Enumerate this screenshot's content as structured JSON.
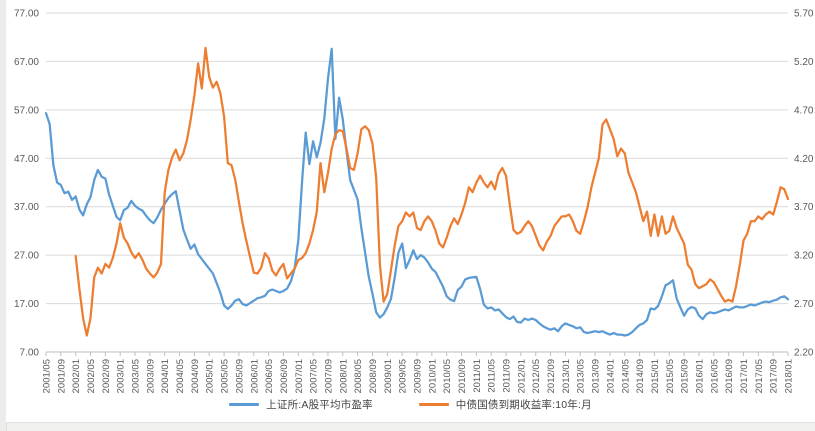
{
  "chart_data": {
    "type": "line",
    "grid": true,
    "legend_position": "bottom",
    "colors": {
      "series_pe": "#5B9BD5",
      "series_yield": "#ED7D31",
      "gridline": "#D9D9D9",
      "axis_line": "#BFBFBF",
      "tick_text": "#595959",
      "background": "#FFFFFF"
    },
    "left_axis": {
      "labels": [
        "77.00",
        "67.00",
        "57.00",
        "47.00",
        "37.00",
        "27.00",
        "17.00",
        "7.00"
      ],
      "values": [
        77,
        67,
        57,
        47,
        37,
        27,
        17,
        7
      ],
      "min": 7,
      "max": 77
    },
    "right_axis": {
      "labels": [
        "5.70",
        "5.20",
        "4.70",
        "4.20",
        "3.70",
        "3.20",
        "2.70",
        "2.20"
      ],
      "values": [
        5.7,
        5.2,
        4.7,
        4.2,
        3.7,
        3.2,
        2.7,
        2.2
      ],
      "min": 2.2,
      "max": 5.7
    },
    "x_tick_every": 4,
    "x_tick_labels": [
      "2001/05",
      "2001/09",
      "2002/01",
      "2002/05",
      "2002/09",
      "2003/01",
      "2003/05",
      "2003/09",
      "2004/01",
      "2004/05",
      "2004/09",
      "2005/01",
      "2005/05",
      "2005/09",
      "2006/01",
      "2006/05",
      "2006/09",
      "2007/01",
      "2007/05",
      "2007/09",
      "2008/01",
      "2008/05",
      "2008/09",
      "2009/01",
      "2009/05",
      "2009/09",
      "2010/01",
      "2010/05",
      "2010/09",
      "2011/01",
      "2011/05",
      "2011/09",
      "2012/01",
      "2012/05",
      "2012/09",
      "2013/01",
      "2013/05",
      "2013/09",
      "2014/01",
      "2014/05",
      "2014/09",
      "2015/01",
      "2015/05",
      "2015/09",
      "2016/01",
      "2016/05",
      "2016/09",
      "2017/01",
      "2017/05",
      "2017/09",
      "2018/01"
    ],
    "x": [
      "2001/05",
      "2001/06",
      "2001/07",
      "2001/08",
      "2001/09",
      "2001/10",
      "2001/11",
      "2001/12",
      "2002/01",
      "2002/02",
      "2002/03",
      "2002/04",
      "2002/05",
      "2002/06",
      "2002/07",
      "2002/08",
      "2002/09",
      "2002/10",
      "2002/11",
      "2002/12",
      "2003/01",
      "2003/02",
      "2003/03",
      "2003/04",
      "2003/05",
      "2003/06",
      "2003/07",
      "2003/08",
      "2003/09",
      "2003/10",
      "2003/11",
      "2003/12",
      "2004/01",
      "2004/02",
      "2004/03",
      "2004/04",
      "2004/05",
      "2004/06",
      "2004/07",
      "2004/08",
      "2004/09",
      "2004/10",
      "2004/11",
      "2004/12",
      "2005/01",
      "2005/02",
      "2005/03",
      "2005/04",
      "2005/05",
      "2005/06",
      "2005/07",
      "2005/08",
      "2005/09",
      "2005/10",
      "2005/11",
      "2005/12",
      "2006/01",
      "2006/02",
      "2006/03",
      "2006/04",
      "2006/05",
      "2006/06",
      "2006/07",
      "2006/08",
      "2006/09",
      "2006/10",
      "2006/11",
      "2006/12",
      "2007/01",
      "2007/02",
      "2007/03",
      "2007/04",
      "2007/05",
      "2007/06",
      "2007/07",
      "2007/08",
      "2007/09",
      "2007/10",
      "2007/11",
      "2007/12",
      "2008/01",
      "2008/02",
      "2008/03",
      "2008/04",
      "2008/05",
      "2008/06",
      "2008/07",
      "2008/08",
      "2008/09",
      "2008/10",
      "2008/11",
      "2008/12",
      "2009/01",
      "2009/02",
      "2009/03",
      "2009/04",
      "2009/05",
      "2009/06",
      "2009/07",
      "2009/08",
      "2009/09",
      "2009/10",
      "2009/11",
      "2009/12",
      "2010/01",
      "2010/02",
      "2010/03",
      "2010/04",
      "2010/05",
      "2010/06",
      "2010/07",
      "2010/08",
      "2010/09",
      "2010/10",
      "2010/11",
      "2010/12",
      "2011/01",
      "2011/02",
      "2011/03",
      "2011/04",
      "2011/05",
      "2011/06",
      "2011/07",
      "2011/08",
      "2011/09",
      "2011/10",
      "2011/11",
      "2011/12",
      "2012/01",
      "2012/02",
      "2012/03",
      "2012/04",
      "2012/05",
      "2012/06",
      "2012/07",
      "2012/08",
      "2012/09",
      "2012/10",
      "2012/11",
      "2012/12",
      "2013/01",
      "2013/02",
      "2013/03",
      "2013/04",
      "2013/05",
      "2013/06",
      "2013/07",
      "2013/08",
      "2013/09",
      "2013/10",
      "2013/11",
      "2013/12",
      "2014/01",
      "2014/02",
      "2014/03",
      "2014/04",
      "2014/05",
      "2014/06",
      "2014/07",
      "2014/08",
      "2014/09",
      "2014/10",
      "2014/11",
      "2014/12",
      "2015/01",
      "2015/02",
      "2015/03",
      "2015/04",
      "2015/05",
      "2015/06",
      "2015/07",
      "2015/08",
      "2015/09",
      "2015/10",
      "2015/11",
      "2015/12",
      "2016/01",
      "2016/02",
      "2016/03",
      "2016/04",
      "2016/05",
      "2016/06",
      "2016/07",
      "2016/08",
      "2016/09",
      "2016/10",
      "2016/11",
      "2016/12",
      "2017/01",
      "2017/02",
      "2017/03",
      "2017/04",
      "2017/05",
      "2017/06",
      "2017/07",
      "2017/08",
      "2017/09",
      "2017/10",
      "2017/11",
      "2017/12",
      "2018/01"
    ],
    "series": [
      {
        "name": "上证所:A股平均市盈率",
        "axis": "left",
        "color": "#5B9BD5",
        "values": [
          56.3,
          54.0,
          45.5,
          42.0,
          41.5,
          39.8,
          40.1,
          38.4,
          39.1,
          36.4,
          35.2,
          37.5,
          39.0,
          42.5,
          44.6,
          43.2,
          42.8,
          39.5,
          37.2,
          34.9,
          34.2,
          36.3,
          36.8,
          38.2,
          37.2,
          36.6,
          36.2,
          35.1,
          34.2,
          33.6,
          34.8,
          36.4,
          37.6,
          38.8,
          39.6,
          40.2,
          36.2,
          32.3,
          30.2,
          28.3,
          29.2,
          27.2,
          26.2,
          25.2,
          24.2,
          23.2,
          21.2,
          19.2,
          16.6,
          15.9,
          16.6,
          17.6,
          17.9,
          16.9,
          16.6,
          17.1,
          17.6,
          18.1,
          18.3,
          18.6,
          19.6,
          19.9,
          19.6,
          19.3,
          19.6,
          20.1,
          21.6,
          24.2,
          30.0,
          42.0,
          52.3,
          45.8,
          50.5,
          47.2,
          50.2,
          55.2,
          63.5,
          69.6,
          51.0,
          59.5,
          55.0,
          48.5,
          42.5,
          40.5,
          38.5,
          32.5,
          27.5,
          22.5,
          19.0,
          15.2,
          14.1,
          14.8,
          16.2,
          18.0,
          22.4,
          27.5,
          29.4,
          24.3,
          26.0,
          28.0,
          26.2,
          27.0,
          26.5,
          25.5,
          24.2,
          23.5,
          22.0,
          20.5,
          18.5,
          17.8,
          17.5,
          19.8,
          20.5,
          22.0,
          22.3,
          22.4,
          22.5,
          20.0,
          16.8,
          16.0,
          16.2,
          15.6,
          15.8,
          15.0,
          14.2,
          13.8,
          14.3,
          13.2,
          13.1,
          13.9,
          13.6,
          13.9,
          13.6,
          12.9,
          12.3,
          11.9,
          11.6,
          11.9,
          11.3,
          12.3,
          12.9,
          12.6,
          12.3,
          11.9,
          12.1,
          11.1,
          10.9,
          11.1,
          11.3,
          11.1,
          11.3,
          10.9,
          10.6,
          10.9,
          10.6,
          10.6,
          10.4,
          10.6,
          11.1,
          11.9,
          12.6,
          12.9,
          13.6,
          16.0,
          15.8,
          16.5,
          18.5,
          20.8,
          21.2,
          21.8,
          18.0,
          16.2,
          14.5,
          15.8,
          16.3,
          16.0,
          14.5,
          13.8,
          14.8,
          15.2,
          15.0,
          15.2,
          15.5,
          15.8,
          15.6,
          16.0,
          16.4,
          16.2,
          16.2,
          16.5,
          16.8,
          16.6,
          16.9,
          17.2,
          17.4,
          17.3,
          17.6,
          17.8,
          18.3,
          18.5,
          17.9
        ]
      },
      {
        "name": "中债国债到期收益率:10年:月",
        "axis": "right",
        "color": "#ED7D31",
        "values": [
          null,
          null,
          null,
          null,
          null,
          null,
          null,
          null,
          3.19,
          2.85,
          2.55,
          2.37,
          2.55,
          2.97,
          3.07,
          3.01,
          3.11,
          3.07,
          3.17,
          3.32,
          3.53,
          3.38,
          3.32,
          3.23,
          3.17,
          3.22,
          3.15,
          3.06,
          3.01,
          2.97,
          3.02,
          3.11,
          3.85,
          4.08,
          4.21,
          4.29,
          4.18,
          4.25,
          4.39,
          4.6,
          4.85,
          5.18,
          4.92,
          5.34,
          5.04,
          4.93,
          4.99,
          4.87,
          4.63,
          4.15,
          4.13,
          3.98,
          3.75,
          3.53,
          3.35,
          3.18,
          3.02,
          3.01,
          3.07,
          3.22,
          3.17,
          3.04,
          2.99,
          3.06,
          3.11,
          2.96,
          3.01,
          3.06,
          3.15,
          3.17,
          3.22,
          3.32,
          3.46,
          3.65,
          4.15,
          3.85,
          4.05,
          4.3,
          4.45,
          4.49,
          4.48,
          4.3,
          4.1,
          4.08,
          4.25,
          4.5,
          4.53,
          4.49,
          4.35,
          4.0,
          3.1,
          2.72,
          2.8,
          3.05,
          3.3,
          3.5,
          3.55,
          3.64,
          3.6,
          3.64,
          3.48,
          3.46,
          3.55,
          3.6,
          3.55,
          3.45,
          3.32,
          3.28,
          3.38,
          3.5,
          3.58,
          3.52,
          3.62,
          3.74,
          3.9,
          3.85,
          3.95,
          4.02,
          3.95,
          3.9,
          3.96,
          3.88,
          4.04,
          4.1,
          4.02,
          3.72,
          3.46,
          3.42,
          3.44,
          3.5,
          3.55,
          3.5,
          3.4,
          3.3,
          3.25,
          3.34,
          3.4,
          3.5,
          3.55,
          3.6,
          3.6,
          3.62,
          3.55,
          3.45,
          3.42,
          3.55,
          3.7,
          3.9,
          4.05,
          4.2,
          4.55,
          4.6,
          4.5,
          4.4,
          4.22,
          4.3,
          4.25,
          4.05,
          3.95,
          3.85,
          3.7,
          3.55,
          3.65,
          3.4,
          3.62,
          3.4,
          3.6,
          3.42,
          3.45,
          3.6,
          3.48,
          3.4,
          3.32,
          3.1,
          3.05,
          2.9,
          2.86,
          2.88,
          2.9,
          2.95,
          2.92,
          2.85,
          2.78,
          2.72,
          2.74,
          2.72,
          2.88,
          3.1,
          3.35,
          3.42,
          3.55,
          3.55,
          3.6,
          3.57,
          3.62,
          3.65,
          3.62,
          3.75,
          3.9,
          3.88,
          3.78
        ]
      }
    ]
  },
  "legend": {
    "items": [
      {
        "label": "上证所:A股平均市盈率",
        "color": "#5B9BD5"
      },
      {
        "label": "中债国债到期收益率:10年:月",
        "color": "#ED7D31"
      }
    ]
  }
}
